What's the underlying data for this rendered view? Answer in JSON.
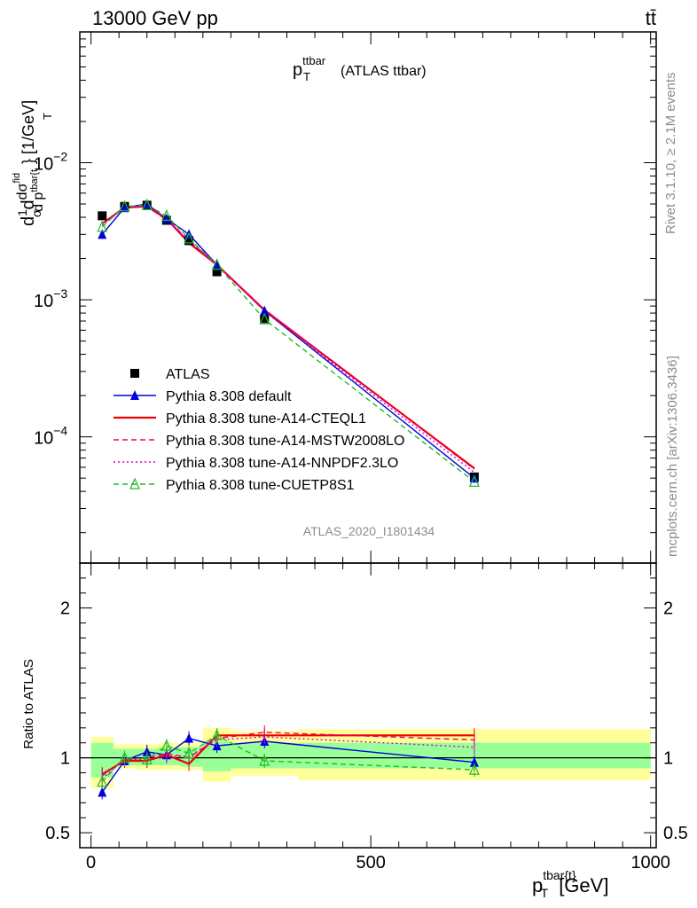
{
  "header": {
    "left": "13000 GeV pp",
    "right": "tt̄"
  },
  "side_labels": {
    "rivet": "Rivet 3.1.10, ≥ 2.1M events",
    "mcplots": "mcplots.cern.ch [arXiv:1306.3436]"
  },
  "watermark": "ATLAS_2020_I1801434",
  "chart_data": [
    {
      "type": "line",
      "title": "p_T^ttbar (ATLAS ttbar)",
      "title_main": "p",
      "title_sup": "ttbar",
      "title_sub": "T",
      "title_rest": "(ATLAS ttbar)",
      "ylabel": "d(1/σ) dσ^{fid}/d p_T^{tbar{t}} } [1/GeV]",
      "ylabel_parts": {
        "a": "d",
        "b": "1",
        "c": "σ",
        "d": "d",
        "e": "dσ",
        "f": "fid",
        "g": "d p",
        "h": "tbar{t",
        "i": "T",
        "j": "} [1/GeV]"
      },
      "xlabel": "p_T^{tbar{t}} [GeV]",
      "xlabel_parts": {
        "main": "p",
        "sup": "tbar{t}",
        "sub": "T",
        "unit": "[GeV]"
      },
      "y_scale": "log",
      "xlim": [
        -20,
        1010
      ],
      "ylim": [
        1.2e-05,
        0.09
      ],
      "y_tick_labels": [
        {
          "value": 0.01,
          "mant": "10",
          "exp": "−2"
        },
        {
          "value": 0.001,
          "mant": "10",
          "exp": "−3"
        },
        {
          "value": 0.0001,
          "mant": "10",
          "exp": "−4"
        }
      ],
      "legend_position": "bottom-left",
      "series": [
        {
          "name": "ATLAS",
          "color": "#000000",
          "marker": "square",
          "dash": "none",
          "is_data": true,
          "x": [
            20,
            60,
            100,
            135,
            175,
            225,
            310,
            685
          ],
          "y": [
            0.0041,
            0.0048,
            0.0049,
            0.0038,
            0.0027,
            0.0016,
            0.00073,
            5.1e-05
          ]
        },
        {
          "name": "Pythia 8.308 default",
          "color": "#0000dd",
          "marker": "triangle",
          "dash": "none",
          "x": [
            20,
            60,
            100,
            135,
            175,
            225,
            310,
            685
          ],
          "y": [
            0.003,
            0.0047,
            0.005,
            0.0039,
            0.003,
            0.0018,
            0.00083,
            5e-05
          ]
        },
        {
          "name": "Pythia 8.308 tune-A14-CTEQL1",
          "color": "#ee0000",
          "marker": "none",
          "dash": "none",
          "x": [
            20,
            60,
            100,
            135,
            175,
            225,
            310,
            685
          ],
          "y": [
            0.0036,
            0.0047,
            0.0048,
            0.0039,
            0.0026,
            0.0018,
            0.00084,
            5.9e-05
          ]
        },
        {
          "name": "Pythia 8.308 tune-A14-MSTW2008LO",
          "color": "#e8006e",
          "marker": "none",
          "dash": "6,4",
          "x": [
            20,
            60,
            100,
            135,
            175,
            225,
            310,
            685
          ],
          "y": [
            0.0036,
            0.0047,
            0.0049,
            0.0039,
            0.0027,
            0.0018,
            0.00085,
            5.8e-05
          ]
        },
        {
          "name": "Pythia 8.308 tune-A14-NNPDF2.3LO",
          "color": "#d000d0",
          "marker": "none",
          "dash": "2,3",
          "x": [
            20,
            60,
            100,
            135,
            175,
            225,
            310,
            685
          ],
          "y": [
            0.0035,
            0.0047,
            0.0048,
            0.0038,
            0.0027,
            0.0018,
            0.00083,
            5.5e-05
          ]
        },
        {
          "name": "Pythia 8.308 tune-CUETP8S1",
          "color": "#22bb22",
          "marker": "open-triangle",
          "dash": "6,4",
          "x": [
            20,
            60,
            100,
            135,
            175,
            225,
            310,
            685
          ],
          "y": [
            0.0034,
            0.0048,
            0.0049,
            0.0041,
            0.0028,
            0.0018,
            0.00072,
            4.7e-05
          ]
        }
      ]
    },
    {
      "type": "line",
      "ylabel": "Ratio to ATLAS",
      "xlim": [
        -20,
        1010
      ],
      "ylim": [
        0.4,
        2.3
      ],
      "y_ticks": [
        0.5,
        1,
        2
      ],
      "y_tick_labels": [
        "0.5",
        "1",
        "2"
      ],
      "x_ticks": [
        0,
        500,
        1000
      ],
      "x_tick_labels": [
        "0",
        "500",
        "1000"
      ],
      "reference_line": 1,
      "uncertainty_bands": [
        {
          "x": [
            0,
            40
          ],
          "green": [
            0.87,
            1.1
          ],
          "yellow": [
            0.8,
            1.14
          ]
        },
        {
          "x": [
            40,
            80
          ],
          "green": [
            0.95,
            1.06
          ],
          "yellow": [
            0.93,
            1.09
          ]
        },
        {
          "x": [
            80,
            120
          ],
          "green": [
            0.95,
            1.06
          ],
          "yellow": [
            0.92,
            1.09
          ]
        },
        {
          "x": [
            120,
            160
          ],
          "green": [
            0.95,
            1.07
          ],
          "yellow": [
            0.92,
            1.1
          ]
        },
        {
          "x": [
            160,
            200
          ],
          "green": [
            0.94,
            1.07
          ],
          "yellow": [
            0.92,
            1.1
          ]
        },
        {
          "x": [
            200,
            250
          ],
          "green": [
            0.91,
            1.11
          ],
          "yellow": [
            0.84,
            1.2
          ]
        },
        {
          "x": [
            250,
            370
          ],
          "green": [
            0.93,
            1.1
          ],
          "yellow": [
            0.88,
            1.18
          ]
        },
        {
          "x": [
            370,
            1000
          ],
          "green": [
            0.93,
            1.1
          ],
          "yellow": [
            0.85,
            1.19
          ]
        }
      ],
      "series": [
        {
          "name": "Pythia 8.308 default",
          "color": "#0000dd",
          "marker": "triangle",
          "dash": "none",
          "x": [
            20,
            60,
            100,
            135,
            175,
            225,
            310,
            685
          ],
          "y": [
            0.77,
            0.98,
            1.04,
            1.02,
            1.13,
            1.08,
            1.11,
            0.97
          ]
        },
        {
          "name": "Pythia 8.308 tune-A14-CTEQL1",
          "color": "#ee0000",
          "marker": "none",
          "dash": "none",
          "x": [
            20,
            60,
            100,
            135,
            175,
            225,
            310,
            685
          ],
          "y": [
            0.89,
            0.98,
            0.98,
            1.02,
            0.96,
            1.15,
            1.15,
            1.15
          ]
        },
        {
          "name": "Pythia 8.308 tune-A14-MSTW2008LO",
          "color": "#e8006e",
          "marker": "none",
          "dash": "6,4",
          "x": [
            20,
            60,
            100,
            135,
            175,
            225,
            310,
            685
          ],
          "y": [
            0.88,
            0.99,
            1.0,
            1.03,
            1.0,
            1.13,
            1.17,
            1.12
          ]
        },
        {
          "name": "Pythia 8.308 tune-A14-NNPDF2.3LO",
          "color": "#d000d0",
          "marker": "none",
          "dash": "2,3",
          "x": [
            20,
            60,
            100,
            135,
            175,
            225,
            310,
            685
          ],
          "y": [
            0.86,
            0.99,
            0.99,
            1.01,
            1.01,
            1.12,
            1.14,
            1.07
          ]
        },
        {
          "name": "Pythia 8.308 tune-CUETP8S1",
          "color": "#22bb22",
          "marker": "open-triangle",
          "dash": "6,4",
          "x": [
            20,
            60,
            100,
            135,
            175,
            225,
            310,
            685
          ],
          "y": [
            0.84,
            1.0,
            0.99,
            1.08,
            1.03,
            1.15,
            0.98,
            0.92
          ]
        }
      ]
    }
  ]
}
